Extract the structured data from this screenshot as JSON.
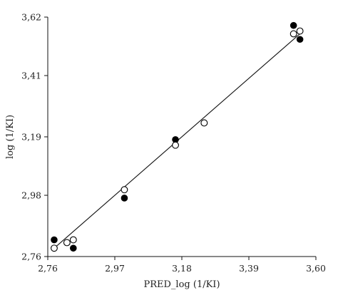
{
  "chart_data": {
    "type": "scatter",
    "title": "",
    "xlabel": "PRED_log (1/KI)",
    "ylabel": "log (1/KI)",
    "xlim": [
      2.76,
      3.6
    ],
    "ylim": [
      2.76,
      3.62
    ],
    "x_ticks": [
      "2,76",
      "2,97",
      "3,18",
      "3,39",
      "3,60"
    ],
    "y_ticks": [
      "2,76",
      "2,98",
      "3,19",
      "3,41",
      "3,62"
    ],
    "x_tick_values": [
      2.76,
      2.97,
      3.18,
      3.39,
      3.6
    ],
    "y_tick_values": [
      2.76,
      2.98,
      3.19,
      3.41,
      3.62
    ],
    "grid": false,
    "legend": "none",
    "series": [
      {
        "marker": "filled-circle",
        "color": "#000000",
        "x": [
          2.78,
          2.84,
          3.0,
          3.16,
          3.25,
          3.53,
          3.55
        ],
        "y": [
          2.82,
          2.79,
          2.97,
          3.18,
          3.24,
          3.59,
          3.54
        ]
      },
      {
        "marker": "open-circle",
        "color": "#ffffff",
        "x": [
          2.78,
          2.82,
          2.84,
          3.0,
          3.16,
          3.25,
          3.53,
          3.55
        ],
        "y": [
          2.79,
          2.81,
          2.82,
          3.0,
          3.16,
          3.24,
          3.56,
          3.57
        ]
      }
    ],
    "fit_line": {
      "x": [
        2.78,
        3.55
      ],
      "y": [
        2.79,
        3.56
      ]
    }
  }
}
